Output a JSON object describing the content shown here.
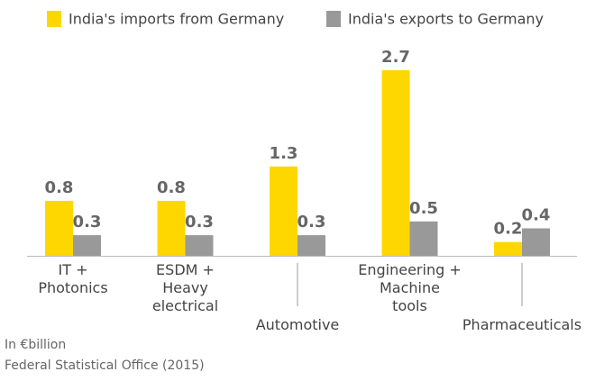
{
  "chart_data": {
    "type": "bar",
    "categories": [
      "IT +\nPhotonics",
      "ESDM +\nHeavy\nelectrical",
      "Automotive",
      "Engineering +\nMachine\ntools",
      "Pharmaceuticals"
    ],
    "series": [
      {
        "name": "India's imports from Germany",
        "color": "#ffd700",
        "values": [
          0.8,
          0.8,
          1.3,
          2.7,
          0.2
        ]
      },
      {
        "name": "India's exports to Germany",
        "color": "#999999",
        "values": [
          0.3,
          0.3,
          0.3,
          0.5,
          0.4
        ]
      }
    ],
    "notes": [
      "In €billion",
      "Federal Statistical Office (2015)"
    ]
  }
}
